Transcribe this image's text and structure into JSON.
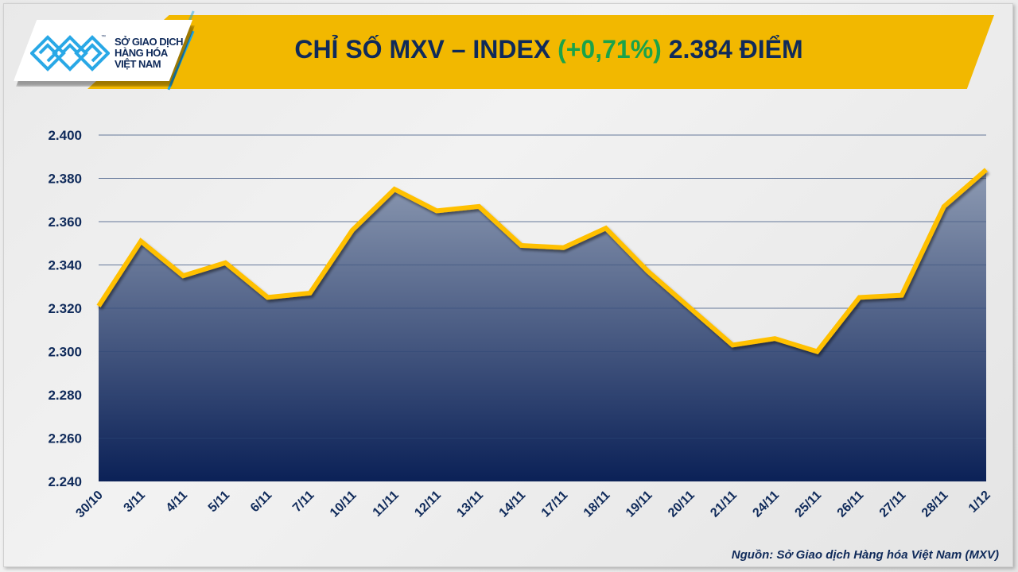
{
  "header": {
    "title_prefix": "CHỈ SỐ MXV – INDEX",
    "change": "(+0,71%)",
    "value": "2.384 ĐIỂM",
    "change_color": "#1aa34a",
    "banner_color": "#F2B800"
  },
  "logo": {
    "line1": "SỞ GIAO DỊCH",
    "line2": "HÀNG HÓA",
    "line3": "VIỆT NAM",
    "tm": "™"
  },
  "source": "Nguồn: Sở Giao dịch Hàng hóa Việt Nam (MXV)",
  "chart_data": {
    "type": "area",
    "title": "",
    "xlabel": "",
    "ylabel": "",
    "categories": [
      "30/10",
      "3/11",
      "4/11",
      "5/11",
      "6/11",
      "7/11",
      "10/11",
      "11/11",
      "12/11",
      "13/11",
      "14/11",
      "17/11",
      "18/11",
      "19/11",
      "20/11",
      "21/11",
      "24/11",
      "25/11",
      "26/11",
      "27/11",
      "28/11",
      "1/12"
    ],
    "values": [
      2321,
      2351,
      2335,
      2341,
      2325,
      2327,
      2356,
      2375,
      2365,
      2367,
      2349,
      2348,
      2357,
      2337,
      2320,
      2303,
      2306,
      2300,
      2325,
      2326,
      2367,
      2384
    ],
    "ylim": [
      2240,
      2400
    ],
    "yticks": [
      2240,
      2260,
      2280,
      2300,
      2320,
      2340,
      2360,
      2380,
      2400
    ],
    "ytick_labels": [
      "2.240",
      "2.260",
      "2.280",
      "2.300",
      "2.320",
      "2.340",
      "2.360",
      "2.380",
      "2.400"
    ],
    "grid": true,
    "line_color": "#FFC000",
    "fill_top_color": "#8e9bb3",
    "fill_bottom_color": "#0b2157"
  }
}
